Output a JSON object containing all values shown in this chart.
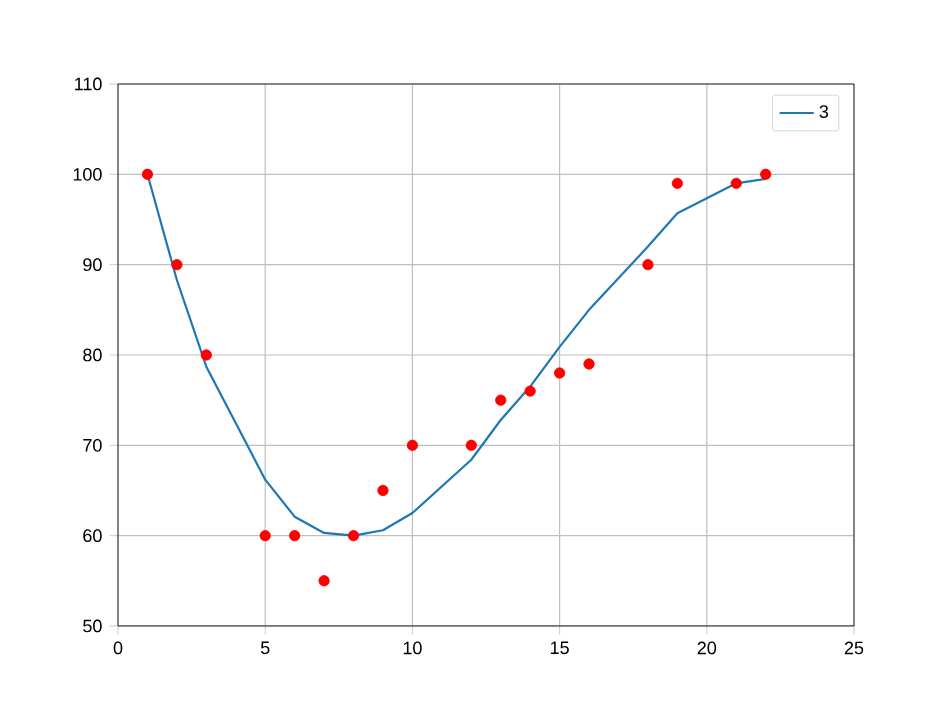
{
  "chart_data": {
    "type": "scatter",
    "xlim": [
      0,
      25
    ],
    "ylim": [
      50,
      110
    ],
    "xticks": [
      0,
      5,
      10,
      15,
      20,
      25
    ],
    "yticks": [
      50,
      60,
      70,
      80,
      90,
      100,
      110
    ],
    "grid": true,
    "legend": "top right",
    "series": [
      {
        "color": "#ff0000",
        "marker": "circle",
        "x": [
          1,
          2,
          3,
          5,
          6,
          7,
          8,
          9,
          10,
          12,
          13,
          14,
          15,
          16,
          18,
          19,
          21,
          22
        ],
        "values": [
          100,
          90,
          80,
          60,
          60,
          55,
          60,
          65,
          70,
          70,
          75,
          76,
          78,
          79,
          90,
          99,
          99,
          100
        ]
      },
      {
        "type": "line",
        "marker": "none",
        "name": "3",
        "color": "#1f77b4",
        "x": [
          1,
          2,
          3,
          5,
          6,
          7,
          8,
          9,
          10,
          12,
          13,
          14,
          15,
          16,
          18,
          19,
          21,
          22
        ],
        "values": [
          100,
          88.3,
          78.7,
          66.2,
          62.1,
          60.3,
          60,
          60.6,
          62.5,
          68.4,
          72.8,
          76.5,
          80.9,
          85,
          92,
          95.7,
          99,
          99.5
        ]
      }
    ]
  }
}
